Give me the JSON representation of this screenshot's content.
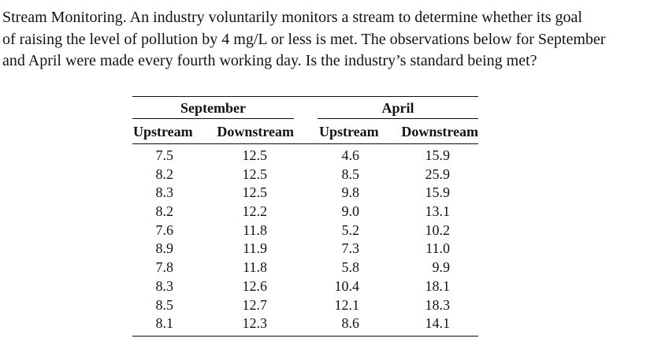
{
  "problem": {
    "lines": [
      "Stream Monitoring. An industry voluntarily monitors a stream to determine whether its goal",
      "of raising the level of pollution by 4 mg/L or less is met. The observations below for September",
      "and April were made every fourth working day. Is the industry’s standard being met?"
    ]
  },
  "table": {
    "group_headers": [
      "September",
      "April"
    ],
    "column_headers": [
      "Upstream",
      "Downstream",
      "Upstream",
      "Downstream"
    ],
    "rows": [
      [
        "7.5",
        "12.5",
        "4.6",
        "15.9"
      ],
      [
        "8.2",
        "12.5",
        "8.5",
        "25.9"
      ],
      [
        "8.3",
        "12.5",
        "9.8",
        "15.9"
      ],
      [
        "8.2",
        "12.2",
        "9.0",
        "13.1"
      ],
      [
        "7.6",
        "11.8",
        "5.2",
        "10.2"
      ],
      [
        "8.9",
        "11.9",
        "7.3",
        "11.0"
      ],
      [
        "7.8",
        "11.8",
        "5.8",
        "9.9"
      ],
      [
        "8.3",
        "12.6",
        "10.4",
        "18.1"
      ],
      [
        "8.5",
        "12.7",
        "12.1",
        "18.3"
      ],
      [
        "8.1",
        "12.3",
        "8.6",
        "14.1"
      ]
    ]
  },
  "colors": {
    "background": "#ffffff",
    "text": "#131313",
    "rule": "#0d0d0d"
  }
}
